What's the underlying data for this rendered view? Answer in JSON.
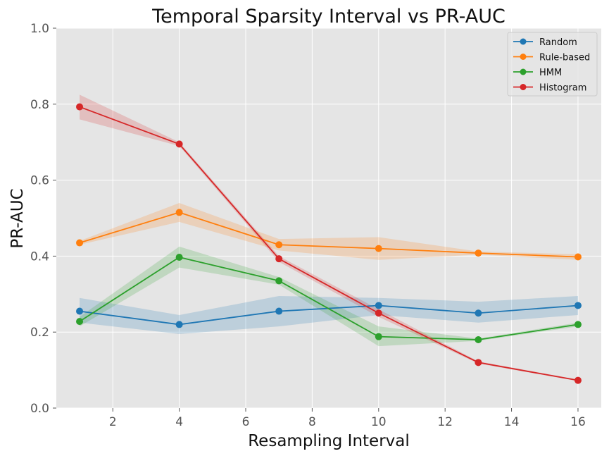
{
  "chart_data": {
    "type": "line",
    "title": "Temporal Sparsity Interval vs PR-AUC",
    "xlabel": "Resampling Interval",
    "ylabel": "PR-AUC",
    "x": [
      1,
      4,
      7,
      10,
      13,
      16
    ],
    "xlim": [
      0.3,
      16.7
    ],
    "ylim": [
      0.0,
      1.0
    ],
    "xticks": [
      2,
      4,
      6,
      8,
      10,
      12,
      14,
      16
    ],
    "yticks": [
      0.0,
      0.2,
      0.4,
      0.6,
      0.8,
      1.0
    ],
    "grid": true,
    "legend_position": "top-right",
    "series": [
      {
        "name": "Random",
        "color": "#1f77b4",
        "values": [
          0.255,
          0.22,
          0.255,
          0.27,
          0.25,
          0.27
        ],
        "lower": [
          0.225,
          0.195,
          0.215,
          0.245,
          0.225,
          0.245
        ],
        "upper": [
          0.29,
          0.245,
          0.295,
          0.29,
          0.28,
          0.295
        ]
      },
      {
        "name": "Rule-based",
        "color": "#ff7f0e",
        "values": [
          0.435,
          0.515,
          0.43,
          0.42,
          0.408,
          0.398
        ],
        "lower": [
          0.43,
          0.49,
          0.415,
          0.39,
          0.404,
          0.39
        ],
        "upper": [
          0.44,
          0.54,
          0.445,
          0.45,
          0.412,
          0.405
        ]
      },
      {
        "name": "HMM",
        "color": "#2ca02c",
        "values": [
          0.228,
          0.397,
          0.335,
          0.188,
          0.18,
          0.22
        ],
        "lower": [
          0.215,
          0.37,
          0.325,
          0.163,
          0.177,
          0.215
        ],
        "upper": [
          0.24,
          0.425,
          0.345,
          0.215,
          0.183,
          0.225
        ]
      },
      {
        "name": "Histogram",
        "color": "#d62728",
        "values": [
          0.793,
          0.695,
          0.393,
          0.25,
          0.12,
          0.073
        ],
        "lower": [
          0.76,
          0.69,
          0.385,
          0.24,
          0.117,
          0.071
        ],
        "upper": [
          0.825,
          0.7,
          0.4,
          0.26,
          0.123,
          0.075
        ]
      }
    ]
  }
}
